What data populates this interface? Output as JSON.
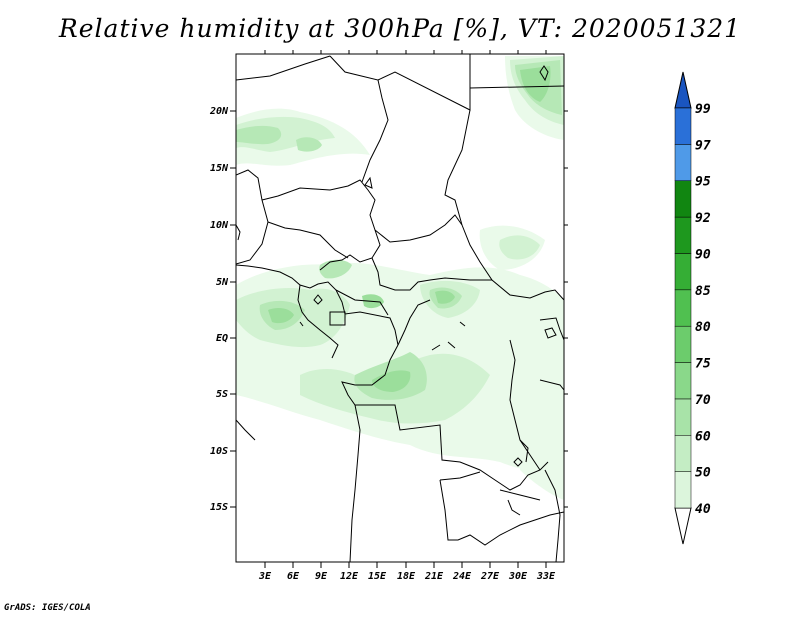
{
  "title": "Relative humidity at 300hPa [%], VT: 2020051321",
  "credit": "GrADS: IGES/COLA",
  "map": {
    "lat_labels": [
      "20N",
      "15N",
      "10N",
      "5N",
      "EQ",
      "5S",
      "10S",
      "15S"
    ],
    "lon_labels": [
      "3E",
      "6E",
      "9E",
      "12E",
      "15E",
      "18E",
      "21E",
      "24E",
      "27E",
      "30E",
      "33E"
    ]
  },
  "colorbar": {
    "levels": [
      "40",
      "50",
      "60",
      "70",
      "75",
      "80",
      "85",
      "90",
      "92",
      "95",
      "97",
      "99"
    ],
    "colors": [
      "#f0fcf0",
      "#dcf5dc",
      "#c4edc4",
      "#a8e3a8",
      "#8ad88a",
      "#6ccc6c",
      "#50c050",
      "#35ae35",
      "#1e981e",
      "#118611",
      "#4f9ae8",
      "#2a70d8",
      "#1a55c0"
    ]
  },
  "chart_data": {
    "type": "heatmap",
    "title": "Relative humidity at 300hPa [%], VT: 2020051321",
    "variable": "Relative humidity",
    "units": "%",
    "level": "300hPa",
    "valid_time": "2020051321",
    "x_ticks": [
      "3E",
      "6E",
      "9E",
      "12E",
      "15E",
      "18E",
      "21E",
      "24E",
      "27E",
      "30E",
      "33E"
    ],
    "y_ticks": [
      "20N",
      "15N",
      "10N",
      "5N",
      "EQ",
      "5S",
      "10S",
      "15S"
    ],
    "legend_levels": [
      40,
      50,
      60,
      70,
      75,
      80,
      85,
      90,
      92,
      95,
      97,
      99
    ],
    "legend_placement": "right"
  }
}
